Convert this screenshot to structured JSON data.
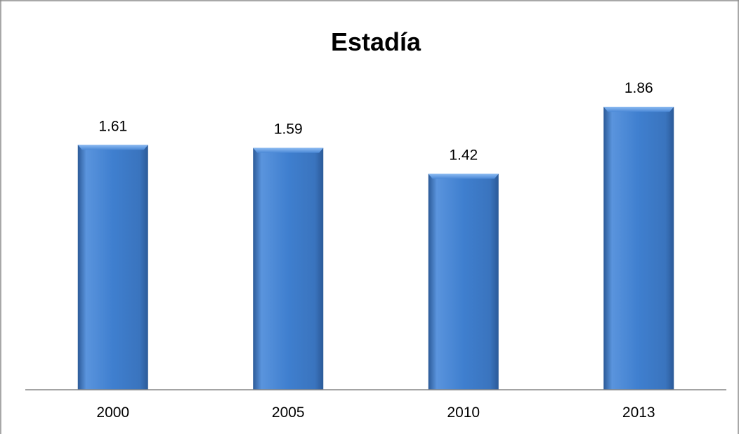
{
  "chart_data": {
    "type": "bar",
    "title": "Estadía",
    "categories": [
      "2000",
      "2005",
      "2010",
      "2013"
    ],
    "values": [
      1.61,
      1.59,
      1.42,
      1.86
    ],
    "value_labels": [
      "1.61",
      "1.59",
      "1.42",
      "1.86"
    ],
    "xlabel": "",
    "ylabel": "",
    "ylim": [
      0,
      2.0
    ],
    "grid": false,
    "legend": "none",
    "bar_color": "#3f7fcf",
    "bar_color_light": "#6aa2e8",
    "bar_color_dark": "#2b5a98"
  }
}
